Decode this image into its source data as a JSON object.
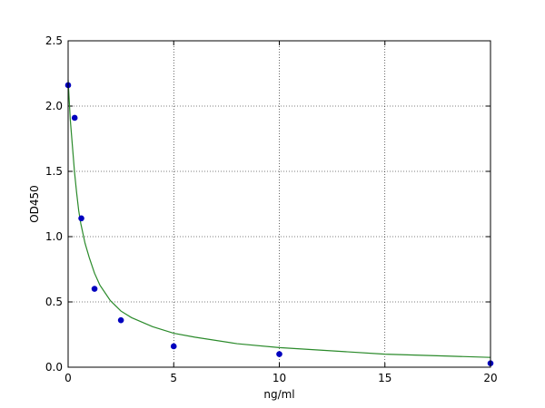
{
  "chart_data": {
    "type": "scatter",
    "xlabel": "ng/ml",
    "ylabel": "OD450",
    "xlim": [
      0,
      20
    ],
    "ylim": [
      0,
      2.5
    ],
    "x_ticks": [
      0,
      5,
      10,
      15,
      20
    ],
    "y_ticks": [
      0.0,
      0.5,
      1.0,
      1.5,
      2.0,
      2.5
    ],
    "x_tick_labels": [
      "0",
      "5",
      "10",
      "15",
      "20"
    ],
    "y_tick_labels": [
      "0.0",
      "0.5",
      "1.0",
      "1.5",
      "2.0",
      "2.5"
    ],
    "grid": true,
    "points": {
      "x": [
        0,
        0.31,
        0.625,
        1.25,
        2.5,
        5,
        10,
        20
      ],
      "y": [
        2.16,
        1.91,
        1.14,
        0.6,
        0.36,
        0.16,
        0.1,
        0.03
      ],
      "color": "#0000bf"
    },
    "fit_curve": {
      "x": [
        0,
        0.05,
        0.1,
        0.2,
        0.3,
        0.4,
        0.5,
        0.6,
        0.8,
        1.0,
        1.25,
        1.5,
        2,
        2.5,
        3,
        4,
        5,
        6,
        8,
        10,
        12,
        15,
        18,
        20
      ],
      "y": [
        2.2,
        2.05,
        1.9,
        1.7,
        1.5,
        1.34,
        1.2,
        1.1,
        0.95,
        0.84,
        0.72,
        0.63,
        0.51,
        0.43,
        0.38,
        0.31,
        0.26,
        0.23,
        0.18,
        0.15,
        0.13,
        0.1,
        0.085,
        0.075
      ],
      "color": "#2a8a2a"
    }
  }
}
